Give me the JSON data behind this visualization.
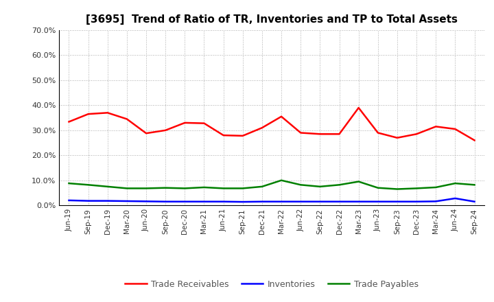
{
  "title": "[3695]  Trend of Ratio of TR, Inventories and TP to Total Assets",
  "x_labels": [
    "Jun-19",
    "Sep-19",
    "Dec-19",
    "Mar-20",
    "Jun-20",
    "Sep-20",
    "Dec-20",
    "Mar-21",
    "Jun-21",
    "Sep-21",
    "Dec-21",
    "Mar-22",
    "Jun-22",
    "Sep-22",
    "Dec-22",
    "Mar-23",
    "Jun-23",
    "Sep-23",
    "Dec-23",
    "Mar-24",
    "Jun-24",
    "Sep-24"
  ],
  "trade_receivables": [
    0.334,
    0.365,
    0.37,
    0.345,
    0.288,
    0.3,
    0.33,
    0.328,
    0.28,
    0.278,
    0.31,
    0.355,
    0.29,
    0.285,
    0.285,
    0.39,
    0.29,
    0.27,
    0.285,
    0.315,
    0.305,
    0.26
  ],
  "inventories": [
    0.02,
    0.018,
    0.018,
    0.017,
    0.016,
    0.015,
    0.015,
    0.015,
    0.015,
    0.014,
    0.015,
    0.015,
    0.015,
    0.015,
    0.015,
    0.015,
    0.015,
    0.015,
    0.015,
    0.016,
    0.028,
    0.015
  ],
  "trade_payables": [
    0.088,
    0.082,
    0.075,
    0.068,
    0.068,
    0.07,
    0.068,
    0.072,
    0.068,
    0.068,
    0.075,
    0.1,
    0.082,
    0.075,
    0.082,
    0.095,
    0.07,
    0.065,
    0.068,
    0.072,
    0.088,
    0.082
  ],
  "tr_color": "#ff0000",
  "inv_color": "#0000ff",
  "tp_color": "#008000",
  "ylim": [
    0.0,
    0.7
  ],
  "yticks": [
    0.0,
    0.1,
    0.2,
    0.3,
    0.4,
    0.5,
    0.6,
    0.7
  ],
  "bg_color": "#ffffff",
  "grid_color": "#aaaaaa",
  "legend_labels": [
    "Trade Receivables",
    "Inventories",
    "Trade Payables"
  ]
}
